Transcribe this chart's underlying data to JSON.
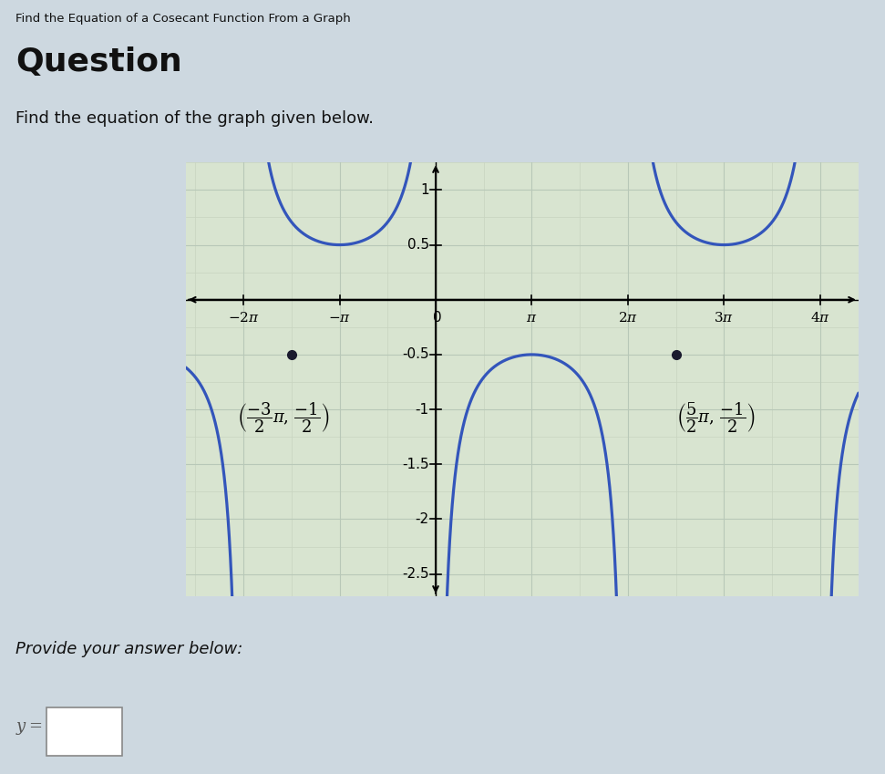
{
  "title_small": "Find the Equation of a Cosecant Function From a Graph",
  "title_large": "Question",
  "subtitle": "Find the equation of the graph given below.",
  "answer_label": "Provide your answer below:",
  "answer_box_label": "y =",
  "curve_color": "#3355bb",
  "curve_linewidth": 2.3,
  "axis_color": "#000000",
  "grid_color_h": "#b8c8b0",
  "grid_color_v": "#c8d8e8",
  "background_color": "#d8e4d0",
  "outer_bg": "#d0dce8",
  "xlim_factor": [
    -2.6,
    4.4
  ],
  "ylim": [
    -2.7,
    1.25
  ],
  "xticks_pi": [
    -2,
    -1,
    0,
    1,
    2,
    3,
    4
  ],
  "ytick_vals": [
    -2.5,
    -2.0,
    -1.5,
    -1.0,
    -0.5,
    0.5,
    1.0
  ],
  "point1_x_factor": -1.5,
  "point1_y": -0.5,
  "point2_x_factor": 2.5,
  "point2_y": -0.5,
  "amplitude": -0.5,
  "b_factor": 0.5,
  "phase": 0.0,
  "dot_color": "#1a1a2e",
  "dot_size": 7
}
